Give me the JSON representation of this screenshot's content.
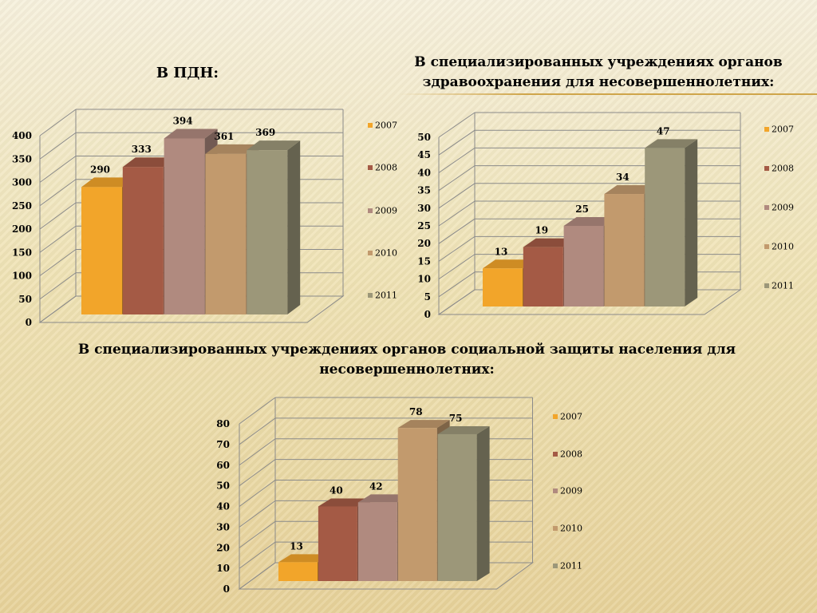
{
  "titles": {
    "pdn": "В ПДН:",
    "health": "В специализированных учреждениях органов здравоохранения для несовершеннолетних:",
    "social": "В специализированных учреждениях органов социальной защиты населения для несовершеннолетних:"
  },
  "series_colors": [
    "#f2a52a",
    "#a45a45",
    "#b08a7f",
    "#c29a6d",
    "#9c9779"
  ],
  "chart_data": [
    {
      "type": "bar",
      "title": "В ПДН:",
      "categories": [
        "2007",
        "2008",
        "2009",
        "2010",
        "2011"
      ],
      "values": [
        290,
        333,
        394,
        361,
        369
      ],
      "ylim": [
        0,
        400
      ],
      "yticks": [
        0,
        50,
        100,
        150,
        200,
        250,
        300,
        350,
        400
      ],
      "legend": "right",
      "grid": true
    },
    {
      "type": "bar",
      "title": "В специализированных учреждениях органов здравоохранения для несовершеннолетних:",
      "categories": [
        "2007",
        "2008",
        "2009",
        "2010",
        "2011"
      ],
      "values": [
        13,
        19,
        25,
        34,
        47
      ],
      "ylim": [
        0,
        50
      ],
      "yticks": [
        0,
        5,
        10,
        15,
        20,
        25,
        30,
        35,
        40,
        45,
        50
      ],
      "legend": "right",
      "grid": true
    },
    {
      "type": "bar",
      "title": "В специализированных учреждениях органов социальной защиты населения для несовершеннолетних:",
      "categories": [
        "2007",
        "2008",
        "2009",
        "2010",
        "2011"
      ],
      "values": [
        13,
        40,
        42,
        78,
        75
      ],
      "ylim": [
        0,
        80
      ],
      "yticks": [
        0,
        10,
        20,
        30,
        40,
        50,
        60,
        70,
        80
      ],
      "legend": "right",
      "grid": true
    }
  ]
}
